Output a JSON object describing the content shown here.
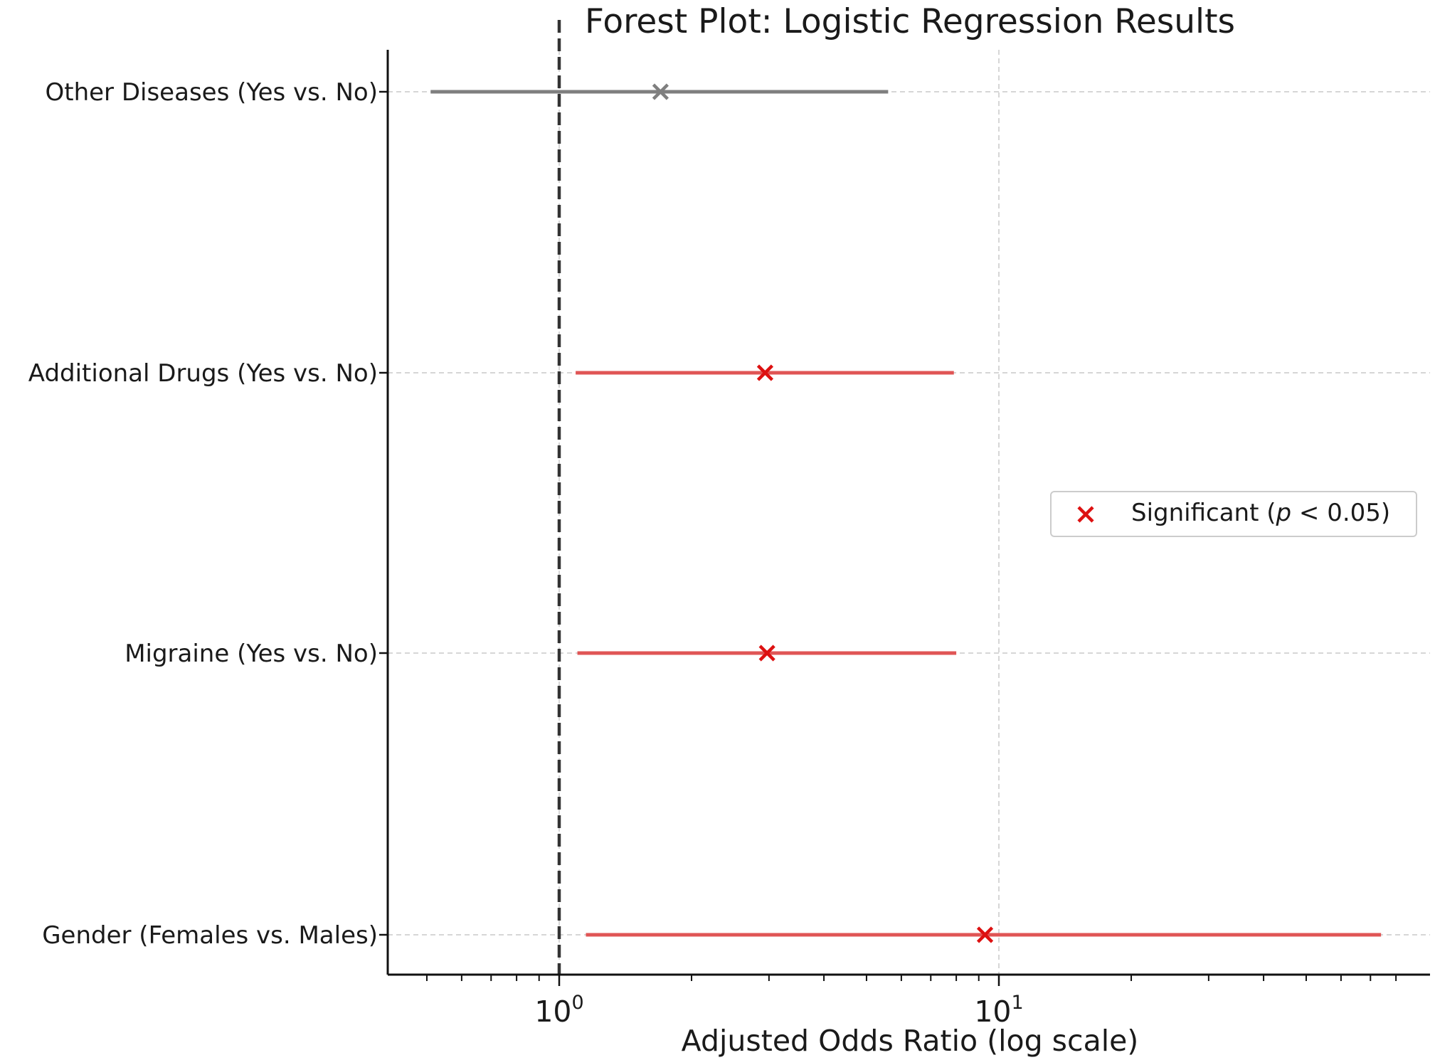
{
  "chart_data": {
    "type": "scatter",
    "variant": "forest",
    "title": "Forest Plot: Logistic Regression Results",
    "xlabel": "Adjusted Odds Ratio (log scale)",
    "ylabel": "",
    "xscale": "log",
    "xlim": [
      0.5,
      85
    ],
    "xticks": [
      {
        "value": 1,
        "base": "10",
        "exp": "0"
      },
      {
        "value": 10,
        "base": "10",
        "exp": "1"
      }
    ],
    "reference_line": {
      "x": 1,
      "style": "dashed"
    },
    "grid": true,
    "categories": [
      "Other Diseases (Yes vs. No)",
      "Additional Drugs (Yes vs. No)",
      "Migraine (Yes vs. No)",
      "Gender (Females vs. Males)"
    ],
    "rows": [
      {
        "label": "Other Diseases (Yes vs. No)",
        "or": 1.7,
        "ci_low": 0.51,
        "ci_high": 5.6,
        "significant": false
      },
      {
        "label": "Additional Drugs (Yes vs. No)",
        "or": 2.94,
        "ci_low": 1.09,
        "ci_high": 7.9,
        "significant": true
      },
      {
        "label": "Migraine (Yes vs. No)",
        "or": 2.97,
        "ci_low": 1.1,
        "ci_high": 8.0,
        "significant": true
      },
      {
        "label": "Gender (Females vs. Males)",
        "or": 9.3,
        "ci_low": 1.15,
        "ci_high": 74.0,
        "significant": true
      }
    ],
    "legend": {
      "position": "center-right",
      "entries": [
        {
          "label_pre": "Significant (",
          "label_p": "p",
          "label_post": " < 0.05)",
          "marker": "x",
          "color": "#dd1111"
        }
      ]
    },
    "colors": {
      "significant": "#dd1111",
      "significant_line": "#e05555",
      "not_significant": "#7f7f7f",
      "reference": "#333333",
      "grid": "#c8c8c8",
      "axis": "#111111"
    }
  }
}
